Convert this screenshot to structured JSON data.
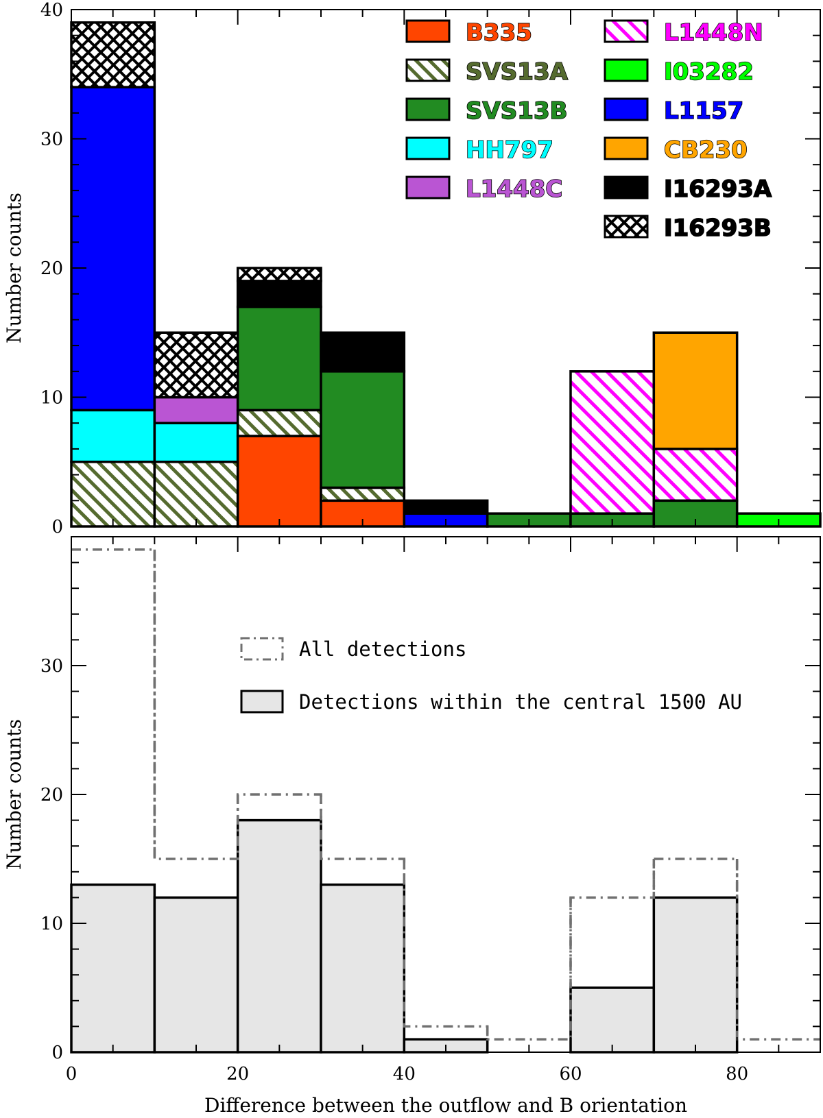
{
  "chart_data": [
    {
      "type": "bar",
      "stacked": true,
      "ylabel": "Number counts",
      "xlim": [
        0,
        90
      ],
      "ylim": [
        0,
        40
      ],
      "yticks": [
        0,
        10,
        20,
        30,
        40
      ],
      "bins": [
        [
          0,
          10
        ],
        [
          10,
          20
        ],
        [
          20,
          30
        ],
        [
          30,
          40
        ],
        [
          40,
          50
        ],
        [
          50,
          60
        ],
        [
          60,
          70
        ],
        [
          70,
          80
        ],
        [
          80,
          90
        ]
      ],
      "series": [
        {
          "name": "B335",
          "color": "#FF4500",
          "pattern": "solid",
          "values": [
            0,
            0,
            7,
            2,
            0,
            0,
            0,
            0,
            0
          ]
        },
        {
          "name": "SVS13A",
          "color": "#556B2F",
          "pattern": "diagonal",
          "values": [
            5,
            5,
            2,
            1,
            0,
            0,
            0,
            0,
            0
          ]
        },
        {
          "name": "SVS13B",
          "color": "#228B22",
          "pattern": "solid",
          "values": [
            0,
            0,
            8,
            9,
            0,
            1,
            1,
            2,
            0
          ]
        },
        {
          "name": "HH797",
          "color": "#00FFFF",
          "pattern": "solid",
          "values": [
            4,
            3,
            0,
            0,
            0,
            0,
            0,
            0,
            0
          ]
        },
        {
          "name": "L1448C",
          "color": "#BA55D3",
          "pattern": "solid",
          "values": [
            0,
            2,
            0,
            0,
            0,
            0,
            0,
            0,
            0
          ]
        },
        {
          "name": "L1448N",
          "color": "#FF00FF",
          "pattern": "diagonal",
          "values": [
            0,
            0,
            0,
            0,
            0,
            0,
            11,
            4,
            0
          ]
        },
        {
          "name": "I03282",
          "color": "#00FF00",
          "pattern": "solid",
          "values": [
            0,
            0,
            0,
            0,
            0,
            0,
            0,
            0,
            1
          ]
        },
        {
          "name": "L1157",
          "color": "#0000FF",
          "pattern": "solid",
          "values": [
            25,
            0,
            0,
            0,
            1,
            0,
            0,
            0,
            0
          ]
        },
        {
          "name": "CB230",
          "color": "#FFA500",
          "pattern": "solid",
          "values": [
            0,
            0,
            0,
            0,
            0,
            0,
            0,
            9,
            0
          ]
        },
        {
          "name": "I16293A",
          "color": "#000000",
          "pattern": "solid",
          "values": [
            0,
            0,
            2,
            3,
            1,
            0,
            0,
            0,
            0
          ]
        },
        {
          "name": "I16293B",
          "color": "#000000",
          "pattern": "crosshatch",
          "values": [
            5,
            5,
            1,
            0,
            0,
            0,
            0,
            0,
            0
          ]
        }
      ]
    },
    {
      "type": "bar",
      "histogram": true,
      "xlabel": "Difference between the outflow and B orientation",
      "ylabel": "Number counts",
      "xlim": [
        0,
        90
      ],
      "ylim": [
        0,
        40
      ],
      "xticks": [
        0,
        20,
        40,
        60,
        80
      ],
      "yticks": [
        0,
        10,
        20,
        30
      ],
      "bins": [
        [
          0,
          10
        ],
        [
          10,
          20
        ],
        [
          20,
          30
        ],
        [
          30,
          40
        ],
        [
          40,
          50
        ],
        [
          50,
          60
        ],
        [
          60,
          70
        ],
        [
          70,
          80
        ],
        [
          80,
          90
        ]
      ],
      "series": [
        {
          "name": "All detections",
          "style": "dash-dot outline",
          "color": "#707070",
          "values": [
            39,
            15,
            20,
            15,
            2,
            1,
            12,
            15,
            1
          ]
        },
        {
          "name": "Detections within the central 1500 AU",
          "style": "filled",
          "color": "#E6E6E6",
          "values": [
            13,
            12,
            18,
            13,
            1,
            0,
            5,
            12,
            0
          ]
        }
      ]
    }
  ]
}
